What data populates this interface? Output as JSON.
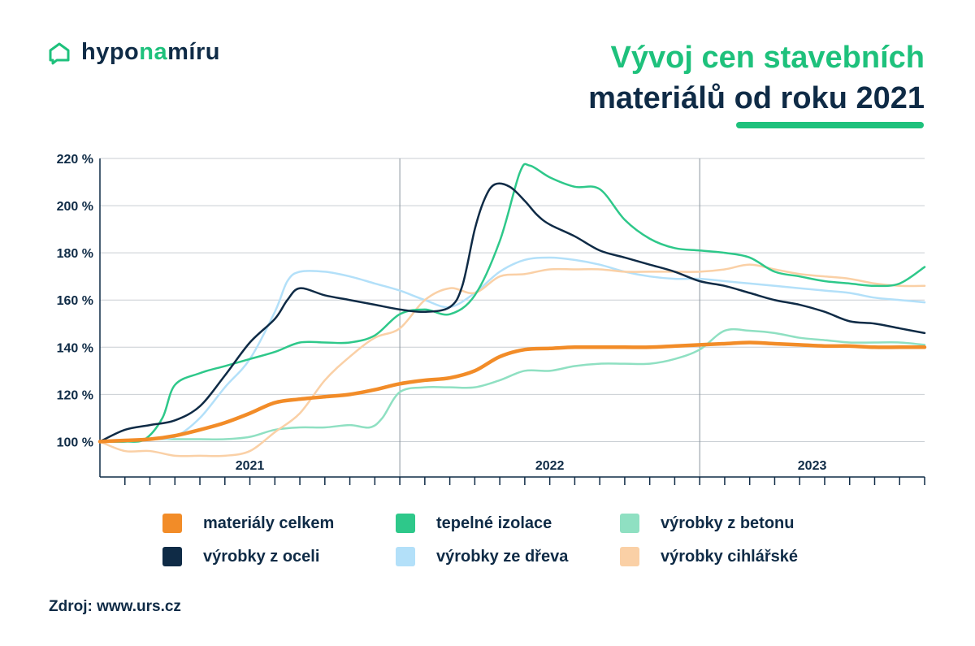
{
  "logo": {
    "part1": "hypo",
    "part2": "na",
    "part3": "míru",
    "accent": "#1ec17c"
  },
  "title": {
    "line1": "Vývoj cen stavebních",
    "line2": "materiálů od roku 2021"
  },
  "source": "Zdroj: www.urs.cz",
  "chart_data": {
    "type": "line",
    "title": "Vývoj cen stavebních materiálů od roku 2021",
    "x_unit": "months since Jan 2021",
    "xlim": [
      0,
      33
    ],
    "ylim": [
      85,
      220
    ],
    "y_ticks": [
      100,
      120,
      140,
      160,
      180,
      200,
      220
    ],
    "y_tick_labels": [
      "100 %",
      "120 %",
      "140 %",
      "160 %",
      "180 %",
      "200 %",
      "220 %"
    ],
    "x_groups": [
      {
        "label": "2021",
        "start": 0,
        "end": 12
      },
      {
        "label": "2022",
        "start": 12,
        "end": 24
      },
      {
        "label": "2023",
        "start": 24,
        "end": 33
      }
    ],
    "grid": true,
    "legend_position": "bottom",
    "series": [
      {
        "name": "materiály celkem",
        "color": "#f28c28",
        "width": 4.5,
        "points": [
          [
            0,
            100
          ],
          [
            1,
            100.5
          ],
          [
            2,
            101
          ],
          [
            3,
            102.5
          ],
          [
            4,
            105
          ],
          [
            5,
            108
          ],
          [
            6,
            112
          ],
          [
            7,
            116.5
          ],
          [
            8,
            118
          ],
          [
            9,
            119
          ],
          [
            10,
            120
          ],
          [
            11,
            122
          ],
          [
            12,
            124.5
          ],
          [
            13,
            126
          ],
          [
            14,
            127
          ],
          [
            15,
            130
          ],
          [
            16,
            136
          ],
          [
            17,
            139
          ],
          [
            18,
            139.5
          ],
          [
            19,
            140
          ],
          [
            20,
            140
          ],
          [
            21,
            140
          ],
          [
            22,
            140
          ],
          [
            23,
            140.5
          ],
          [
            24,
            141
          ],
          [
            25,
            141.5
          ],
          [
            26,
            142
          ],
          [
            27,
            141.5
          ],
          [
            28,
            141
          ],
          [
            29,
            140.5
          ],
          [
            30,
            140.5
          ],
          [
            31,
            140
          ],
          [
            32,
            140
          ],
          [
            33,
            140
          ]
        ]
      },
      {
        "name": "tepelné izolace",
        "color": "#2ec88a",
        "width": 2.5,
        "points": [
          [
            0,
            100
          ],
          [
            1,
            100
          ],
          [
            1.8,
            101
          ],
          [
            2.5,
            110
          ],
          [
            3,
            124
          ],
          [
            4,
            129
          ],
          [
            5,
            132
          ],
          [
            6,
            135
          ],
          [
            7,
            138
          ],
          [
            8,
            142
          ],
          [
            9,
            142
          ],
          [
            10,
            142
          ],
          [
            11,
            145
          ],
          [
            12,
            154
          ],
          [
            13,
            156
          ],
          [
            14,
            154
          ],
          [
            15,
            162
          ],
          [
            16,
            185
          ],
          [
            16.8,
            214
          ],
          [
            17.2,
            217
          ],
          [
            18,
            212
          ],
          [
            19,
            208
          ],
          [
            20,
            207
          ],
          [
            21,
            194
          ],
          [
            22,
            186
          ],
          [
            23,
            182
          ],
          [
            24,
            181
          ],
          [
            25,
            180
          ],
          [
            26,
            178
          ],
          [
            27,
            172
          ],
          [
            28,
            170
          ],
          [
            29,
            168
          ],
          [
            30,
            167
          ],
          [
            31,
            166
          ],
          [
            32,
            167
          ],
          [
            33,
            174
          ]
        ]
      },
      {
        "name": "výrobky z betonu",
        "color": "#8fe0c2",
        "width": 2.5,
        "points": [
          [
            0,
            100
          ],
          [
            1,
            100
          ],
          [
            2,
            101
          ],
          [
            3,
            101
          ],
          [
            4,
            101
          ],
          [
            5,
            101
          ],
          [
            6,
            102
          ],
          [
            7,
            105
          ],
          [
            8,
            106
          ],
          [
            9,
            106
          ],
          [
            10,
            107
          ],
          [
            10.8,
            106
          ],
          [
            11.3,
            110
          ],
          [
            12,
            121
          ],
          [
            13,
            123
          ],
          [
            14,
            123
          ],
          [
            15,
            123
          ],
          [
            16,
            126
          ],
          [
            17,
            130
          ],
          [
            18,
            130
          ],
          [
            19,
            132
          ],
          [
            20,
            133
          ],
          [
            21,
            133
          ],
          [
            22,
            133
          ],
          [
            23,
            135
          ],
          [
            24,
            139
          ],
          [
            25,
            147
          ],
          [
            26,
            147
          ],
          [
            27,
            146
          ],
          [
            28,
            144
          ],
          [
            29,
            143
          ],
          [
            30,
            142
          ],
          [
            31,
            142
          ],
          [
            32,
            142
          ],
          [
            33,
            141
          ]
        ]
      },
      {
        "name": "výrobky z oceli",
        "color": "#0f2b46",
        "width": 2.5,
        "points": [
          [
            0,
            100
          ],
          [
            1,
            105
          ],
          [
            2,
            107
          ],
          [
            3,
            109
          ],
          [
            4,
            115
          ],
          [
            5,
            128
          ],
          [
            6,
            142
          ],
          [
            7,
            152
          ],
          [
            7.5,
            160
          ],
          [
            8,
            165
          ],
          [
            9,
            162
          ],
          [
            10,
            160
          ],
          [
            11,
            158
          ],
          [
            12,
            156
          ],
          [
            13,
            155
          ],
          [
            14,
            157
          ],
          [
            14.5,
            166
          ],
          [
            15,
            190
          ],
          [
            15.4,
            203
          ],
          [
            15.8,
            209
          ],
          [
            16.4,
            208
          ],
          [
            17,
            202
          ],
          [
            17.5,
            196
          ],
          [
            18,
            192
          ],
          [
            19,
            187
          ],
          [
            20,
            181
          ],
          [
            21,
            178
          ],
          [
            22,
            175
          ],
          [
            23,
            172
          ],
          [
            24,
            168
          ],
          [
            25,
            166
          ],
          [
            26,
            163
          ],
          [
            27,
            160
          ],
          [
            28,
            158
          ],
          [
            29,
            155
          ],
          [
            30,
            151
          ],
          [
            31,
            150
          ],
          [
            32,
            148
          ],
          [
            33,
            146
          ]
        ]
      },
      {
        "name": "výrobky ze dřeva",
        "color": "#b3e0f9",
        "width": 2.5,
        "points": [
          [
            0,
            100
          ],
          [
            1,
            100
          ],
          [
            2,
            101
          ],
          [
            3,
            102
          ],
          [
            4,
            110
          ],
          [
            5,
            123
          ],
          [
            6,
            135
          ],
          [
            7,
            155
          ],
          [
            7.5,
            168
          ],
          [
            8,
            172
          ],
          [
            9,
            172
          ],
          [
            10,
            170
          ],
          [
            11,
            167
          ],
          [
            12,
            164
          ],
          [
            13,
            160
          ],
          [
            14,
            157
          ],
          [
            15,
            163
          ],
          [
            16,
            172
          ],
          [
            17,
            177
          ],
          [
            18,
            178
          ],
          [
            19,
            177
          ],
          [
            20,
            175
          ],
          [
            21,
            172
          ],
          [
            22,
            170
          ],
          [
            23,
            169
          ],
          [
            24,
            169
          ],
          [
            25,
            168
          ],
          [
            26,
            167
          ],
          [
            27,
            166
          ],
          [
            28,
            165
          ],
          [
            29,
            164
          ],
          [
            30,
            163
          ],
          [
            31,
            161
          ],
          [
            32,
            160
          ],
          [
            33,
            159
          ]
        ]
      },
      {
        "name": "výrobky cihlářské",
        "color": "#fad0a6",
        "width": 2.5,
        "points": [
          [
            0,
            100
          ],
          [
            1,
            96
          ],
          [
            2,
            96
          ],
          [
            3,
            94
          ],
          [
            4,
            94
          ],
          [
            5,
            94
          ],
          [
            6,
            96
          ],
          [
            7,
            104
          ],
          [
            8,
            112
          ],
          [
            9,
            126
          ],
          [
            10,
            136
          ],
          [
            11,
            144
          ],
          [
            12,
            148
          ],
          [
            13,
            160
          ],
          [
            14,
            165
          ],
          [
            15,
            163
          ],
          [
            16,
            170
          ],
          [
            17,
            171
          ],
          [
            18,
            173
          ],
          [
            19,
            173
          ],
          [
            20,
            173
          ],
          [
            21,
            172
          ],
          [
            22,
            172
          ],
          [
            23,
            172
          ],
          [
            24,
            172
          ],
          [
            25,
            173
          ],
          [
            26,
            175
          ],
          [
            27,
            173
          ],
          [
            28,
            171
          ],
          [
            29,
            170
          ],
          [
            30,
            169
          ],
          [
            31,
            167
          ],
          [
            32,
            166
          ],
          [
            33,
            166
          ]
        ]
      }
    ]
  }
}
